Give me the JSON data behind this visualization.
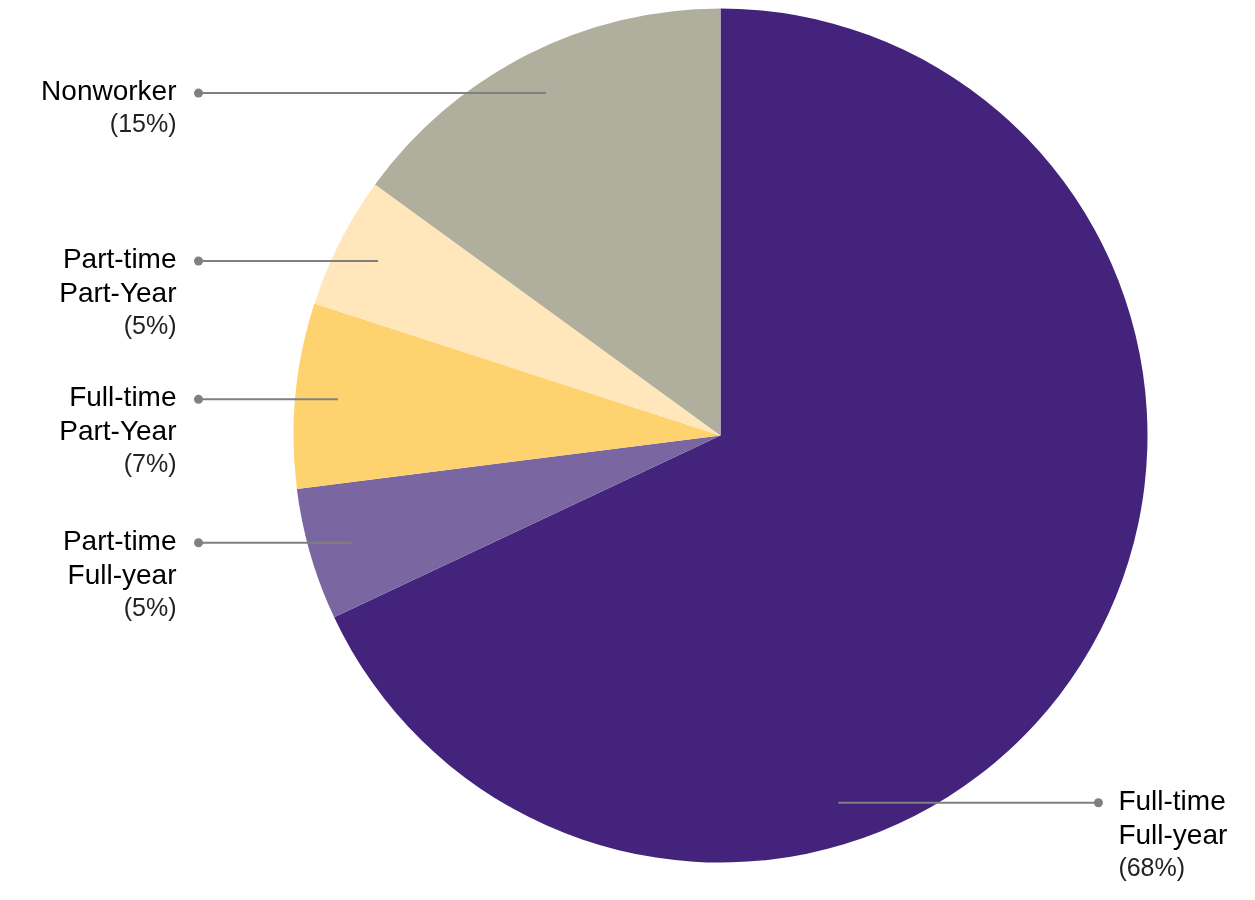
{
  "chart_data": {
    "type": "pie",
    "categories": [
      "Full-time Full-year",
      "Part-time Full-year",
      "Full-time Part-Year",
      "Part-time Part-Year",
      "Nonworker"
    ],
    "values": [
      68,
      5,
      7,
      5,
      15
    ],
    "colors": [
      "#43237b",
      "#7a67a1",
      "#ffd270",
      "#ffe7bb",
      "#b0ae9c"
    ],
    "value_labels": [
      "(68%)",
      "(5%)",
      "(7%)",
      "(5%)",
      "(15%)"
    ]
  }
}
